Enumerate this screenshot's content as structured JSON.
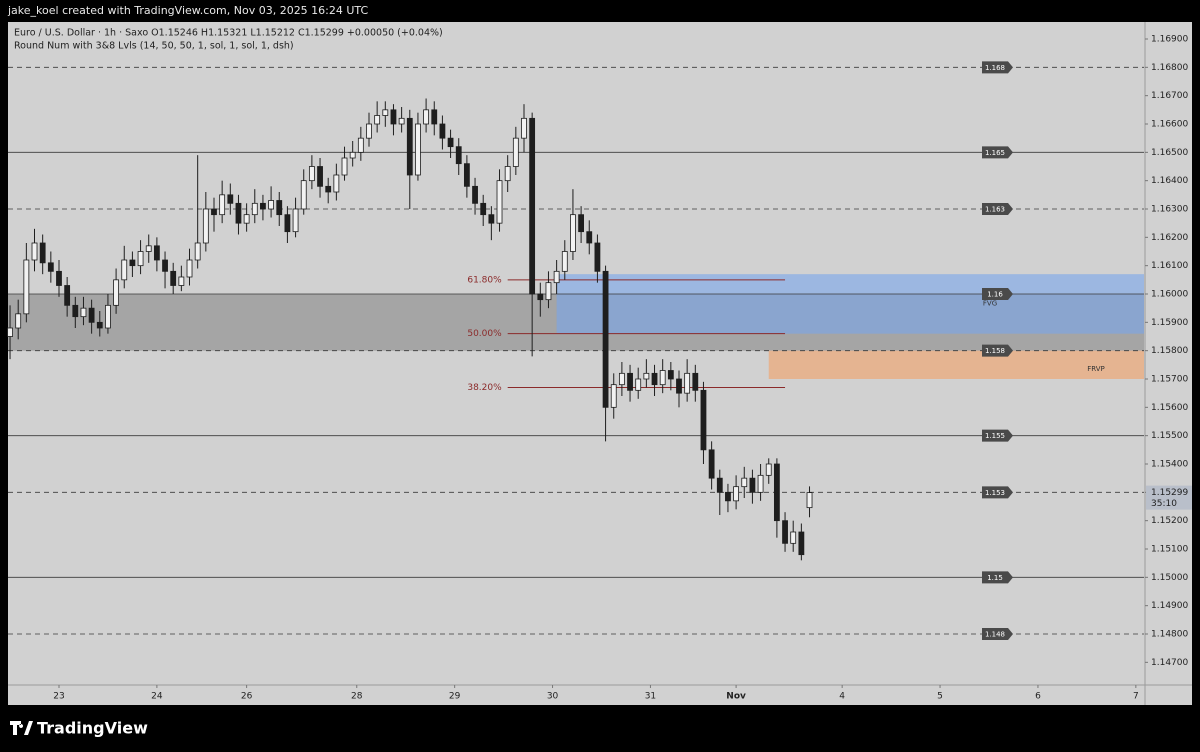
{
  "chart_data": {
    "type": "candlestick",
    "credit": "jake_koel created with TradingView.com, Nov 03, 2025 16:24 UTC",
    "title": "Euro / U.S. Dollar · 1h · Saxo  O1.15246  H1.15321  L1.15212  C1.15299  +0.00050 (+0.04%)",
    "subtitle": "Round Num with 3&8 Lvls (14, 50, 50, 1, sol, 1, sol, 1, dsh)",
    "brand": "TradingView",
    "countdown": "35:10",
    "up_color": "#f2f2f2",
    "down_color": "#1e1e1e",
    "xlim": [
      -0.5,
      278
    ],
    "ylim": [
      1.1462,
      1.1696
    ],
    "xticks": [
      {
        "value": 12,
        "label": "23"
      },
      {
        "value": 36,
        "label": "24"
      },
      {
        "value": 58,
        "label": "26"
      },
      {
        "value": 85,
        "label": "28"
      },
      {
        "value": 109,
        "label": "29"
      },
      {
        "value": 133,
        "label": "30"
      },
      {
        "value": 157,
        "label": "31"
      },
      {
        "value": 178,
        "label": "Nov"
      },
      {
        "value": 204,
        "label": "4"
      },
      {
        "value": 228,
        "label": "5"
      },
      {
        "value": 252,
        "label": "6"
      },
      {
        "value": 276,
        "label": "7"
      }
    ],
    "yticks": [
      {
        "value": 1.169,
        "label": "1.16900"
      },
      {
        "value": 1.168,
        "label": "1.16800"
      },
      {
        "value": 1.167,
        "label": "1.16700"
      },
      {
        "value": 1.166,
        "label": "1.16600"
      },
      {
        "value": 1.165,
        "label": "1.16500"
      },
      {
        "value": 1.164,
        "label": "1.16400"
      },
      {
        "value": 1.163,
        "label": "1.16300"
      },
      {
        "value": 1.162,
        "label": "1.16200"
      },
      {
        "value": 1.161,
        "label": "1.16100"
      },
      {
        "value": 1.16,
        "label": "1.16000"
      },
      {
        "value": 1.159,
        "label": "1.15900"
      },
      {
        "value": 1.158,
        "label": "1.15800"
      },
      {
        "value": 1.157,
        "label": "1.15700"
      },
      {
        "value": 1.156,
        "label": "1.15600"
      },
      {
        "value": 1.155,
        "label": "1.15500"
      },
      {
        "value": 1.154,
        "label": "1.15400"
      },
      {
        "value": 1.153,
        "label": "1.15300"
      },
      {
        "value": 1.152,
        "label": "1.15200"
      },
      {
        "value": 1.151,
        "label": "1.15100"
      },
      {
        "value": 1.15,
        "label": "1.15000"
      },
      {
        "value": 1.149,
        "label": "1.14900"
      },
      {
        "value": 1.148,
        "label": "1.14800"
      },
      {
        "value": 1.147,
        "label": "1.14700"
      }
    ],
    "levels": [
      {
        "value": 1.168,
        "dashed": true
      },
      {
        "value": 1.165,
        "dashed": false
      },
      {
        "value": 1.163,
        "dashed": true
      },
      {
        "value": 1.16,
        "dashed": false
      },
      {
        "value": 1.158,
        "dashed": true
      },
      {
        "value": 1.155,
        "dashed": false
      },
      {
        "value": 1.153,
        "dashed": true
      },
      {
        "value": 1.15,
        "dashed": false
      },
      {
        "value": 1.148,
        "dashed": true
      }
    ],
    "zones": [
      {
        "from": -0.5,
        "low": 1.158,
        "high": 1.16,
        "color": "rgba(110,110,110,0.45)"
      },
      {
        "name": "FVG",
        "from": 134,
        "low": 1.1586,
        "high": 1.1607,
        "color": "rgba(120,165,235,0.6)"
      },
      {
        "name": "FRVP",
        "from": 186,
        "low": 1.157,
        "high": 1.158,
        "color": "rgba(240,165,110,0.65)"
      }
    ],
    "fib": [
      {
        "label": "61.80%",
        "price": 1.1605,
        "from": 122,
        "to": 190
      },
      {
        "label": "50.00%",
        "price": 1.1586,
        "from": 122,
        "to": 190
      },
      {
        "label": "38.20%",
        "price": 1.1567,
        "from": 122,
        "to": 190
      }
    ],
    "fib_color": "#8b2a2a",
    "x": [
      0,
      2,
      4,
      6,
      8,
      10,
      12,
      14,
      16,
      18,
      20,
      22,
      24,
      26,
      28,
      30,
      32,
      34,
      36,
      38,
      40,
      42,
      44,
      46,
      48,
      50,
      52,
      54,
      56,
      58,
      60,
      62,
      64,
      66,
      68,
      70,
      72,
      74,
      76,
      78,
      80,
      82,
      84,
      86,
      88,
      90,
      92,
      94,
      96,
      98,
      100,
      102,
      104,
      106,
      108,
      110,
      112,
      114,
      116,
      118,
      120,
      122,
      124,
      126,
      128,
      130,
      132,
      134,
      136,
      138,
      140,
      142,
      144,
      146,
      148,
      150,
      152,
      154,
      156,
      158,
      160,
      162,
      164,
      166,
      168,
      170,
      172,
      174,
      176,
      178,
      180,
      182,
      184,
      186,
      188,
      190,
      192,
      194,
      196
    ],
    "candles": [
      [
        1.1585,
        1.1596,
        1.1577,
        1.1588
      ],
      [
        1.1588,
        1.1598,
        1.1584,
        1.1593
      ],
      [
        1.1593,
        1.1618,
        1.159,
        1.1612
      ],
      [
        1.1612,
        1.1623,
        1.1608,
        1.1618
      ],
      [
        1.1618,
        1.1621,
        1.1607,
        1.1611
      ],
      [
        1.1611,
        1.1615,
        1.1604,
        1.1608
      ],
      [
        1.1608,
        1.1612,
        1.1599,
        1.1603
      ],
      [
        1.1603,
        1.1606,
        1.1592,
        1.1596
      ],
      [
        1.1596,
        1.1599,
        1.1588,
        1.1592
      ],
      [
        1.1592,
        1.1599,
        1.1589,
        1.1595
      ],
      [
        1.1595,
        1.1598,
        1.1586,
        1.159
      ],
      [
        1.159,
        1.1594,
        1.1585,
        1.1588
      ],
      [
        1.1588,
        1.16,
        1.1586,
        1.1596
      ],
      [
        1.1596,
        1.1609,
        1.1593,
        1.1605
      ],
      [
        1.1605,
        1.1617,
        1.1602,
        1.1612
      ],
      [
        1.1612,
        1.1615,
        1.1606,
        1.161
      ],
      [
        1.161,
        1.1619,
        1.1607,
        1.1615
      ],
      [
        1.1615,
        1.1621,
        1.1611,
        1.1617
      ],
      [
        1.1617,
        1.162,
        1.1608,
        1.1612
      ],
      [
        1.1612,
        1.1615,
        1.1602,
        1.1608
      ],
      [
        1.1608,
        1.1611,
        1.16,
        1.1603
      ],
      [
        1.1603,
        1.161,
        1.1601,
        1.1606
      ],
      [
        1.1606,
        1.1616,
        1.1603,
        1.1612
      ],
      [
        1.1612,
        1.1649,
        1.1609,
        1.1618
      ],
      [
        1.1618,
        1.1636,
        1.1615,
        1.163
      ],
      [
        1.163,
        1.1634,
        1.1622,
        1.1628
      ],
      [
        1.1628,
        1.164,
        1.1625,
        1.1635
      ],
      [
        1.1635,
        1.1639,
        1.1628,
        1.1632
      ],
      [
        1.1632,
        1.1635,
        1.1621,
        1.1625
      ],
      [
        1.1625,
        1.1632,
        1.1622,
        1.1628
      ],
      [
        1.1628,
        1.1637,
        1.1625,
        1.1632
      ],
      [
        1.1632,
        1.1635,
        1.1626,
        1.163
      ],
      [
        1.163,
        1.1638,
        1.1627,
        1.1633
      ],
      [
        1.1633,
        1.1636,
        1.1624,
        1.1628
      ],
      [
        1.1628,
        1.1631,
        1.1618,
        1.1622
      ],
      [
        1.1622,
        1.1634,
        1.162,
        1.163
      ],
      [
        1.163,
        1.1644,
        1.1628,
        1.164
      ],
      [
        1.164,
        1.1649,
        1.1637,
        1.1645
      ],
      [
        1.1645,
        1.1648,
        1.1634,
        1.1638
      ],
      [
        1.1638,
        1.1641,
        1.1632,
        1.1636
      ],
      [
        1.1636,
        1.1646,
        1.1633,
        1.1642
      ],
      [
        1.1642,
        1.1652,
        1.164,
        1.1648
      ],
      [
        1.1648,
        1.1654,
        1.1645,
        1.165
      ],
      [
        1.165,
        1.1659,
        1.1647,
        1.1655
      ],
      [
        1.1655,
        1.1664,
        1.1652,
        1.166
      ],
      [
        1.166,
        1.1668,
        1.1657,
        1.1663
      ],
      [
        1.1663,
        1.1668,
        1.1659,
        1.1665
      ],
      [
        1.1665,
        1.1667,
        1.1656,
        1.166
      ],
      [
        1.166,
        1.1666,
        1.1657,
        1.1662
      ],
      [
        1.1662,
        1.1665,
        1.163,
        1.1642
      ],
      [
        1.1642,
        1.1664,
        1.164,
        1.166
      ],
      [
        1.166,
        1.1669,
        1.1657,
        1.1665
      ],
      [
        1.1665,
        1.1668,
        1.1656,
        1.166
      ],
      [
        1.166,
        1.1663,
        1.1651,
        1.1655
      ],
      [
        1.1655,
        1.1658,
        1.1648,
        1.1652
      ],
      [
        1.1652,
        1.1655,
        1.1642,
        1.1646
      ],
      [
        1.1646,
        1.1649,
        1.1634,
        1.1638
      ],
      [
        1.1638,
        1.1641,
        1.1628,
        1.1632
      ],
      [
        1.1632,
        1.1635,
        1.1624,
        1.1628
      ],
      [
        1.1628,
        1.1631,
        1.1619,
        1.1625
      ],
      [
        1.1625,
        1.1644,
        1.1622,
        1.164
      ],
      [
        1.164,
        1.1649,
        1.1636,
        1.1645
      ],
      [
        1.1645,
        1.1659,
        1.1642,
        1.1655
      ],
      [
        1.1655,
        1.1667,
        1.165,
        1.1662
      ],
      [
        1.1662,
        1.1664,
        1.1578,
        1.16
      ],
      [
        1.16,
        1.1604,
        1.1592,
        1.1598
      ],
      [
        1.1598,
        1.1608,
        1.1595,
        1.1604
      ],
      [
        1.1604,
        1.1612,
        1.16,
        1.1608
      ],
      [
        1.1608,
        1.1619,
        1.1605,
        1.1615
      ],
      [
        1.1615,
        1.1637,
        1.1612,
        1.1628
      ],
      [
        1.1628,
        1.1631,
        1.1618,
        1.1622
      ],
      [
        1.1622,
        1.1626,
        1.1614,
        1.1618
      ],
      [
        1.1618,
        1.1621,
        1.1604,
        1.1608
      ],
      [
        1.1608,
        1.161,
        1.1548,
        1.156
      ],
      [
        1.156,
        1.1572,
        1.1556,
        1.1568
      ],
      [
        1.1568,
        1.1576,
        1.1564,
        1.1572
      ],
      [
        1.1572,
        1.1575,
        1.1562,
        1.1566
      ],
      [
        1.1566,
        1.1574,
        1.1563,
        1.157
      ],
      [
        1.157,
        1.1577,
        1.1567,
        1.1572
      ],
      [
        1.1572,
        1.1575,
        1.1564,
        1.1568
      ],
      [
        1.1568,
        1.1577,
        1.1565,
        1.1573
      ],
      [
        1.1573,
        1.1576,
        1.1566,
        1.157
      ],
      [
        1.157,
        1.1573,
        1.156,
        1.1565
      ],
      [
        1.1565,
        1.1577,
        1.1562,
        1.1572
      ],
      [
        1.1572,
        1.1575,
        1.1562,
        1.1566
      ],
      [
        1.1566,
        1.1569,
        1.154,
        1.1545
      ],
      [
        1.1545,
        1.1548,
        1.1531,
        1.1535
      ],
      [
        1.1535,
        1.1538,
        1.1522,
        1.153
      ],
      [
        1.153,
        1.1533,
        1.1523,
        1.1527
      ],
      [
        1.1527,
        1.1536,
        1.1524,
        1.1532
      ],
      [
        1.1532,
        1.1539,
        1.1528,
        1.1535
      ],
      [
        1.1535,
        1.1538,
        1.1526,
        1.153
      ],
      [
        1.153,
        1.154,
        1.1527,
        1.1536
      ],
      [
        1.1536,
        1.1542,
        1.1533,
        1.154
      ],
      [
        1.154,
        1.1542,
        1.1514,
        1.152
      ],
      [
        1.152,
        1.1523,
        1.1509,
        1.1512
      ],
      [
        1.1512,
        1.152,
        1.1509,
        1.1516
      ],
      [
        1.1516,
        1.1519,
        1.1506,
        1.1508
      ],
      [
        1.15246,
        1.15321,
        1.15212,
        1.15299
      ]
    ]
  }
}
